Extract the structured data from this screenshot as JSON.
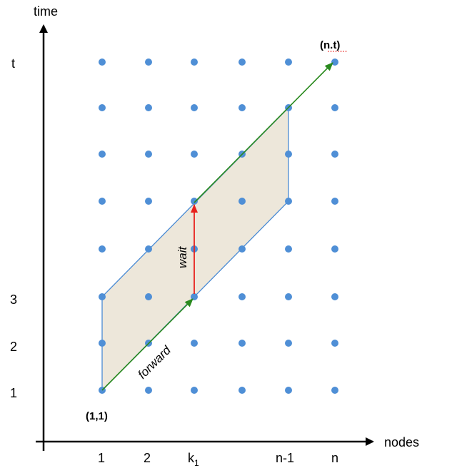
{
  "axes": {
    "y_label": "time",
    "x_label": "nodes"
  },
  "x_ticks": [
    "1",
    "2",
    "k",
    "n-1",
    "n"
  ],
  "x_tick_k_subscript": "1",
  "y_ticks": [
    "1",
    "2",
    "3",
    "t"
  ],
  "point_labels": {
    "origin": "(1,1)",
    "end": "(n.t)"
  },
  "edge_labels": {
    "forward": "forward",
    "wait": "wait"
  },
  "colors": {
    "dot": "#4f8fd6",
    "parallelogram_fill": "#ede7da",
    "parallelogram_stroke": "#4a8bd4",
    "forward_arrow": "#2a8a1e",
    "wait_arrow": "#e8211c",
    "axis": "#000000"
  }
}
